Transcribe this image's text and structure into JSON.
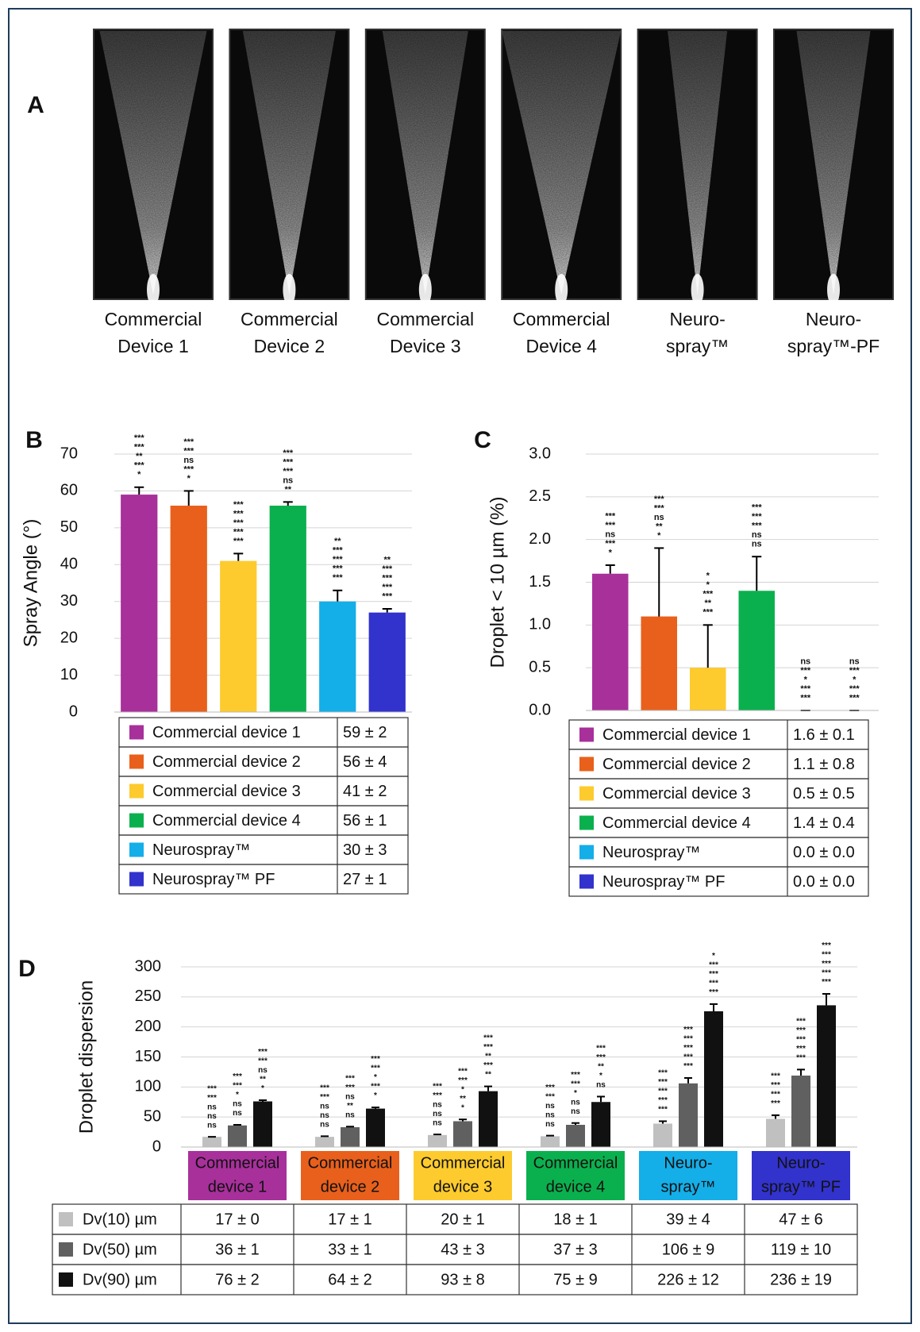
{
  "panel_a": {
    "label": "A",
    "devices": [
      [
        "Commercial",
        "Device 1"
      ],
      [
        "Commercial",
        "Device 2"
      ],
      [
        "Commercial",
        "Device 3"
      ],
      [
        "Commercial",
        "Device 4"
      ],
      [
        "Neuro-",
        "spray™"
      ],
      [
        "Neuro-",
        "spray™-PF"
      ]
    ]
  },
  "chart_data": [
    {
      "type": "bar",
      "panel": "B",
      "ylabel": "Spray Angle  (°)",
      "ylim": [
        0,
        70
      ],
      "yticks": [
        0,
        10,
        20,
        30,
        40,
        50,
        60,
        70
      ],
      "grid": true,
      "categories": [
        "Commercial device 1",
        "Commercial device 2",
        "Commercial device 3",
        "Commercial device 4",
        "Neurospray™",
        "Neurospray™ PF"
      ],
      "colors": [
        "#a8309b",
        "#e8601c",
        "#fdcb2e",
        "#0bb04e",
        "#14aee8",
        "#3232cc"
      ],
      "values": [
        59,
        56,
        41,
        56,
        30,
        27
      ],
      "errors": [
        2,
        4,
        2,
        1,
        3,
        1
      ],
      "value_labels": [
        "59 ± 2",
        "56 ± 4",
        "41 ± 2",
        "56 ± 1",
        "30 ± 3",
        "27 ± 1"
      ],
      "significance": [
        [
          "***",
          "***",
          "**",
          "***",
          "*"
        ],
        [
          "***",
          "***",
          "ns",
          "***",
          "*"
        ],
        [
          "***",
          "***",
          "***",
          "***",
          "***"
        ],
        [
          "***",
          "***",
          "***",
          "ns",
          "**"
        ],
        [
          "**",
          "***",
          "***",
          "***",
          "***"
        ],
        [
          "**",
          "***",
          "***",
          "***",
          "***"
        ]
      ]
    },
    {
      "type": "bar",
      "panel": "C",
      "ylabel": "Droplet < 10 µm (%)",
      "ylim": [
        0,
        3
      ],
      "yticks": [
        {
          "value": 0,
          "label": "0.0"
        },
        {
          "value": 0.5,
          "label": "0.5"
        },
        {
          "value": 1,
          "label": "1.0"
        },
        {
          "value": 1.5,
          "label": "1.5"
        },
        {
          "value": 2,
          "label": "2.0"
        },
        {
          "value": 2.5,
          "label": "2.5"
        },
        {
          "value": 3,
          "label": "3.0"
        }
      ],
      "grid": true,
      "categories": [
        "Commercial device 1",
        "Commercial device 2",
        "Commercial device 3",
        "Commercial device 4",
        "Neurospray™",
        "Neurospray™ PF"
      ],
      "colors": [
        "#a8309b",
        "#e8601c",
        "#fdcb2e",
        "#0bb04e",
        "#14aee8",
        "#3232cc"
      ],
      "values": [
        1.6,
        1.1,
        0.5,
        1.4,
        0.0,
        0.0
      ],
      "errors": [
        0.1,
        0.8,
        0.5,
        0.4,
        0.0,
        0.0
      ],
      "value_labels": [
        "1.6 ± 0.1",
        "1.1 ± 0.8",
        "0.5 ± 0.5",
        "1.4 ± 0.4",
        "0.0 ± 0.0",
        "0.0 ± 0.0"
      ],
      "significance": [
        [
          "***",
          "***",
          "ns",
          "***",
          "*"
        ],
        [
          "***",
          "***",
          "ns",
          "**",
          "*"
        ],
        [
          "*",
          "*",
          "***",
          "**",
          "***"
        ],
        [
          "***",
          "***",
          "***",
          "ns",
          "ns"
        ],
        [
          "ns",
          "***",
          "*",
          "***",
          "***"
        ],
        [
          "ns",
          "***",
          "*",
          "***",
          "***"
        ]
      ]
    },
    {
      "type": "grouped_bar",
      "panel": "D",
      "ylabel": "Droplet dispersion",
      "ylim": [
        0,
        300
      ],
      "yticks": [
        0,
        50,
        100,
        150,
        200,
        250,
        300
      ],
      "grid": true,
      "categories": [
        [
          "Commercial",
          "device 1"
        ],
        [
          "Commercial",
          "device 2"
        ],
        [
          "Commercial",
          "device 3"
        ],
        [
          "Commercial",
          "device 4"
        ],
        [
          "Neuro-",
          "spray™"
        ],
        [
          "Neuro-",
          "spray™ PF"
        ]
      ],
      "colors": [
        "#a8309b",
        "#e8601c",
        "#fdcb2e",
        "#0bb04e",
        "#14aee8",
        "#3232cc"
      ],
      "series": [
        {
          "name": "Dv(10) µm",
          "color": "#c0c0c0",
          "values": [
            17,
            17,
            20,
            18,
            39,
            47
          ],
          "errors": [
            0,
            1,
            1,
            1,
            4,
            6
          ],
          "value_labels": [
            "17 ± 0",
            "17 ± 1",
            "20 ± 1",
            "18 ± 1",
            "39 ± 4",
            "47 ± 6"
          ],
          "significance": [
            [
              "***",
              "***",
              "ns",
              "ns",
              "ns"
            ],
            [
              "***",
              "***",
              "ns",
              "ns",
              "ns"
            ],
            [
              "***",
              "***",
              "ns",
              "ns",
              "ns"
            ],
            [
              "***",
              "***",
              "ns",
              "ns",
              "ns"
            ],
            [
              "***",
              "***",
              "***",
              "***",
              "***"
            ],
            [
              "***",
              "***",
              "***",
              "***"
            ]
          ]
        },
        {
          "name": "Dv(50) µm",
          "color": "#606060",
          "values": [
            36,
            33,
            43,
            37,
            106,
            119
          ],
          "errors": [
            1,
            1,
            3,
            3,
            9,
            10
          ],
          "value_labels": [
            "36 ± 1",
            "33 ± 1",
            "43 ± 3",
            "37 ± 3",
            "106 ± 9",
            "119 ± 10"
          ],
          "significance": [
            [
              "***",
              "***",
              "*",
              "ns",
              "ns"
            ],
            [
              "***",
              "***",
              "ns",
              "**",
              "ns"
            ],
            [
              "***",
              "***",
              "*",
              "**",
              "*"
            ],
            [
              "***",
              "***",
              "*",
              "ns",
              "ns"
            ],
            [
              "***",
              "***",
              "***",
              "***",
              "***"
            ],
            [
              "***",
              "***",
              "***",
              "***",
              "***"
            ]
          ]
        },
        {
          "name": "Dv(90) µm",
          "color": "#111111",
          "values": [
            76,
            64,
            93,
            75,
            226,
            236
          ],
          "errors": [
            2,
            2,
            8,
            9,
            12,
            19
          ],
          "value_labels": [
            "76 ± 2",
            "64 ± 2",
            "93 ± 8",
            "75 ± 9",
            "226 ± 12",
            "236 ± 19"
          ],
          "significance": [
            [
              "***",
              "***",
              "ns",
              "**",
              "*"
            ],
            [
              "***",
              "***",
              "*",
              "***",
              "*"
            ],
            [
              "***",
              "***",
              "**",
              "***",
              "**"
            ],
            [
              "***",
              "***",
              "**",
              "*",
              "ns"
            ],
            [
              "*",
              "***",
              "***",
              "***",
              "***"
            ],
            [
              "***",
              "***",
              "***",
              "***",
              "***"
            ]
          ]
        }
      ]
    }
  ]
}
